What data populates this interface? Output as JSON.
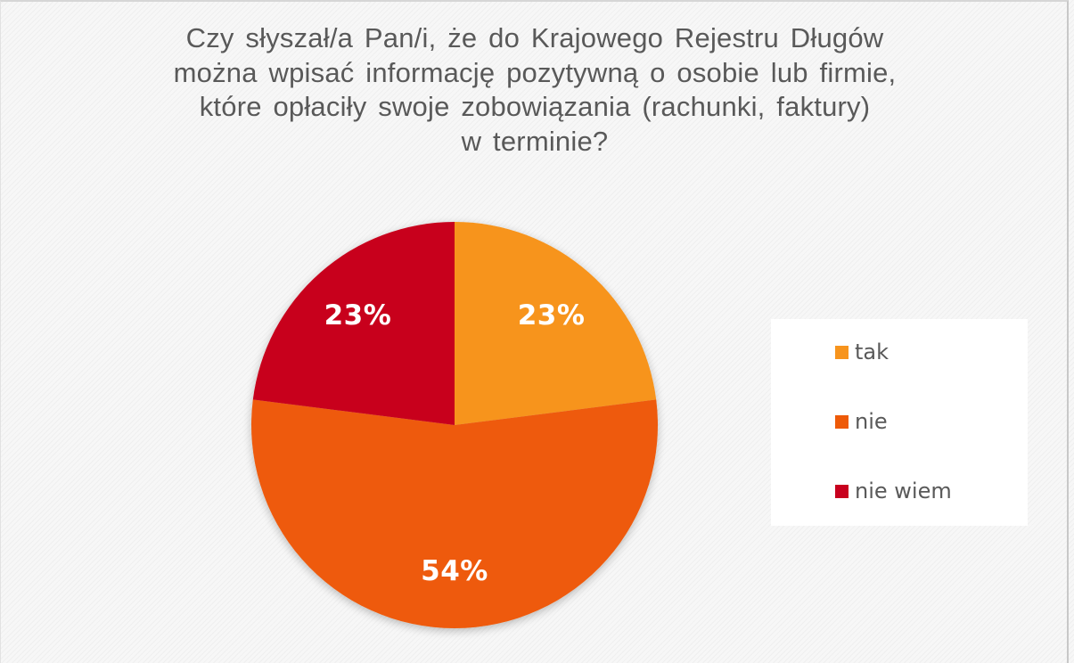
{
  "chart_data": {
    "type": "pie",
    "title": "Czy słyszał/a Pan/i, że do Krajowego Rejestru Długów można wpisać informację pozytywną o osobie lub firmie, które opłaciły swoje zobowiązania (rachunki, faktury) w terminie?",
    "title_lines": [
      "Czy słyszał/a Pan/i, że do Krajowego Rejestru Długów",
      "można wpisać informację pozytywną o osobie lub firmie,",
      "które opłaciły swoje zobowiązania (rachunki, faktury)",
      "w terminie?"
    ],
    "categories": [
      "tak",
      "nie",
      "nie wiem"
    ],
    "values": [
      23,
      54,
      23
    ],
    "data_labels": [
      "23%",
      "54%",
      "23%"
    ],
    "colors": [
      "#F7941D",
      "#EE5A08",
      "#C8001E"
    ],
    "unit": "%",
    "start_angle": 0,
    "direction": "clockwise",
    "legend_position": "right",
    "xlabel": "",
    "ylabel": ""
  },
  "legend": {
    "items": [
      {
        "label": "tak",
        "color": "#F7941D"
      },
      {
        "label": "nie",
        "color": "#EE5A08"
      },
      {
        "label": "nie wiem",
        "color": "#C8001E"
      }
    ]
  }
}
